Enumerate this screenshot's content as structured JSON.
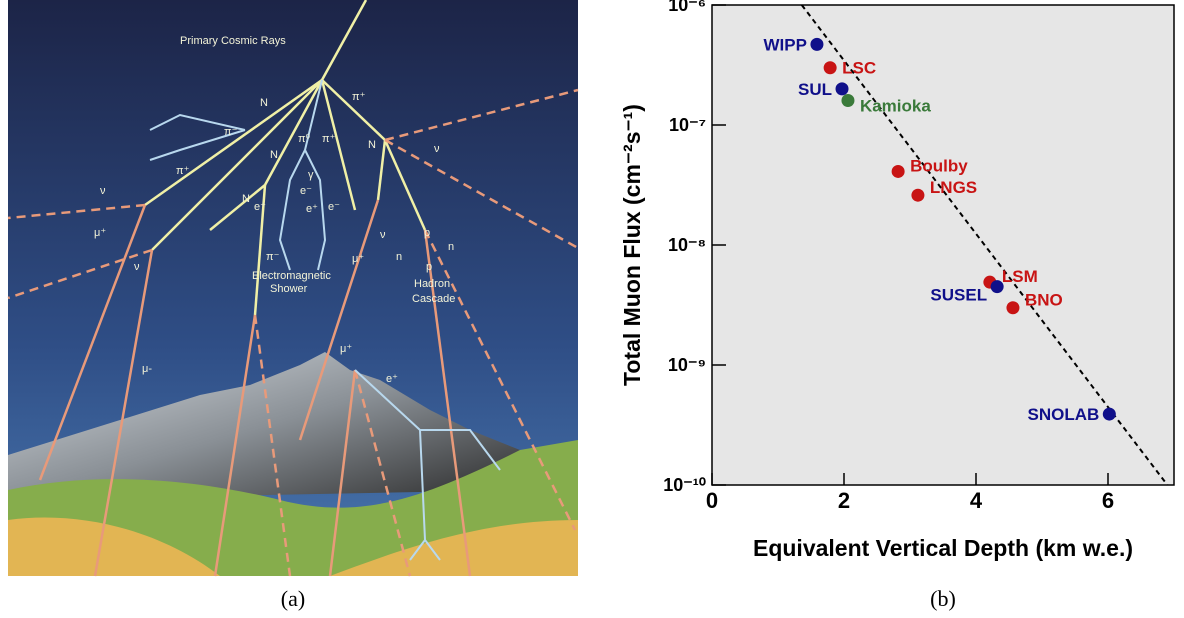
{
  "diagram": {
    "labels": [
      "Primary Cosmic Rays",
      "N",
      "π⁺",
      "π⁻",
      "π⁰",
      "π⁺",
      "N",
      "N",
      "ν",
      "π⁺",
      "γ",
      "e⁻",
      "e⁺",
      "e⁺",
      "e⁻",
      "N",
      "ν",
      "μ⁺",
      "ν",
      "π⁻",
      "ν",
      "μ⁺",
      "p",
      "n",
      "n",
      "p",
      "Electromagnetic",
      "Shower",
      "Hadron",
      "Cascade",
      "μ⁺",
      "e⁺",
      "μ-"
    ]
  },
  "captions": [
    "(a)",
    "(b)"
  ],
  "chart_data": {
    "type": "scatter",
    "xlabel": "Equivalent Vertical Depth (km w.e.)",
    "ylabel": "Total Muon Flux (cm⁻²s⁻¹)",
    "labels": [
      "WIPP",
      "LSC",
      "SUL",
      "Kamioka",
      "Boulby",
      "LNGS",
      "LSM",
      "SUSEL",
      "BNO",
      "SNOLAB"
    ],
    "x": [
      1.59,
      1.79,
      1.97,
      2.06,
      2.82,
      3.12,
      4.21,
      4.32,
      4.56,
      6.02
    ],
    "values": [
      4.7e-07,
      3e-07,
      2e-07,
      1.6e-07,
      4.1e-08,
      2.6e-08,
      4.9e-09,
      4.5e-09,
      3e-09,
      3.9e-10
    ],
    "colors": [
      "#10108a",
      "#c81414",
      "#10108a",
      "#3a7a3a",
      "#c81414",
      "#c81414",
      "#c81414",
      "#10108a",
      "#c81414",
      "#10108a"
    ],
    "fit_line": {
      "x": [
        1.36,
        6.9
      ],
      "values": [
        1e-06,
        1e-10
      ]
    },
    "xlim": [
      0,
      7
    ],
    "ylim": [
      1e-10,
      1e-06
    ],
    "log_y": true,
    "xticks": [
      0,
      2,
      4,
      6
    ],
    "yticks": [
      {
        "value": 1e-10,
        "label": "10⁻¹⁰"
      },
      {
        "value": 1e-09,
        "label": "10⁻⁹"
      },
      {
        "value": 1e-08,
        "label": "10⁻⁸"
      },
      {
        "value": 1e-07,
        "label": "10⁻⁷"
      },
      {
        "value": 1e-06,
        "label": "10⁻⁶"
      }
    ]
  }
}
